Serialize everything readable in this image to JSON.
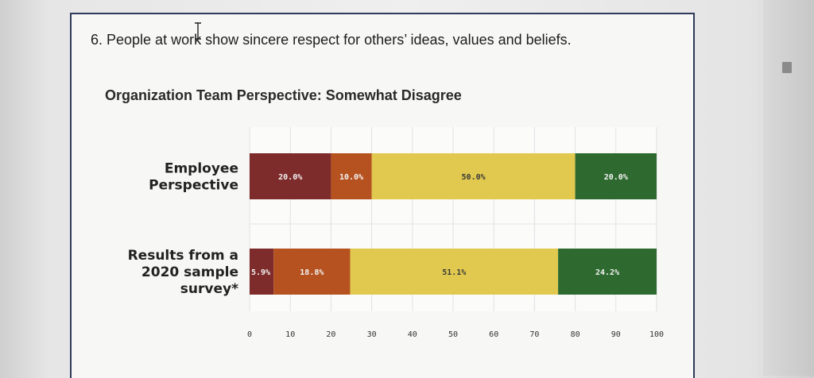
{
  "question": {
    "text": "6. People at work show sincere respect for others’ ideas, values and beliefs."
  },
  "colors": {
    "strongly_disagree": "#7e2b2b",
    "disagree": "#b5521f",
    "agree": "#e1c84e",
    "strongly_agree": "#2e6a2f"
  },
  "chart_data": {
    "type": "bar",
    "orientation": "horizontal",
    "stacked": true,
    "title": "Organization Team Perspective: Somewhat Disagree",
    "xlim": [
      0,
      100
    ],
    "xticks": [
      0,
      10,
      20,
      30,
      40,
      50,
      60,
      70,
      80,
      90,
      100
    ],
    "grid": true,
    "categories": [
      [
        "Employee",
        "Perspective"
      ],
      [
        "Results from a",
        "2020 sample",
        "survey*"
      ]
    ],
    "series": [
      {
        "color_key": "strongly_disagree",
        "values": [
          20.0,
          5.9
        ],
        "labels": [
          "20.0%",
          "5.9%"
        ]
      },
      {
        "color_key": "disagree",
        "values": [
          10.0,
          18.8
        ],
        "labels": [
          "10.0%",
          "18.8%"
        ]
      },
      {
        "color_key": "agree",
        "values": [
          50.0,
          51.1
        ],
        "labels": [
          "50.0%",
          "51.1%"
        ]
      },
      {
        "color_key": "strongly_agree",
        "values": [
          20.0,
          24.2
        ],
        "labels": [
          "20.0%",
          "24.2%"
        ]
      }
    ]
  }
}
